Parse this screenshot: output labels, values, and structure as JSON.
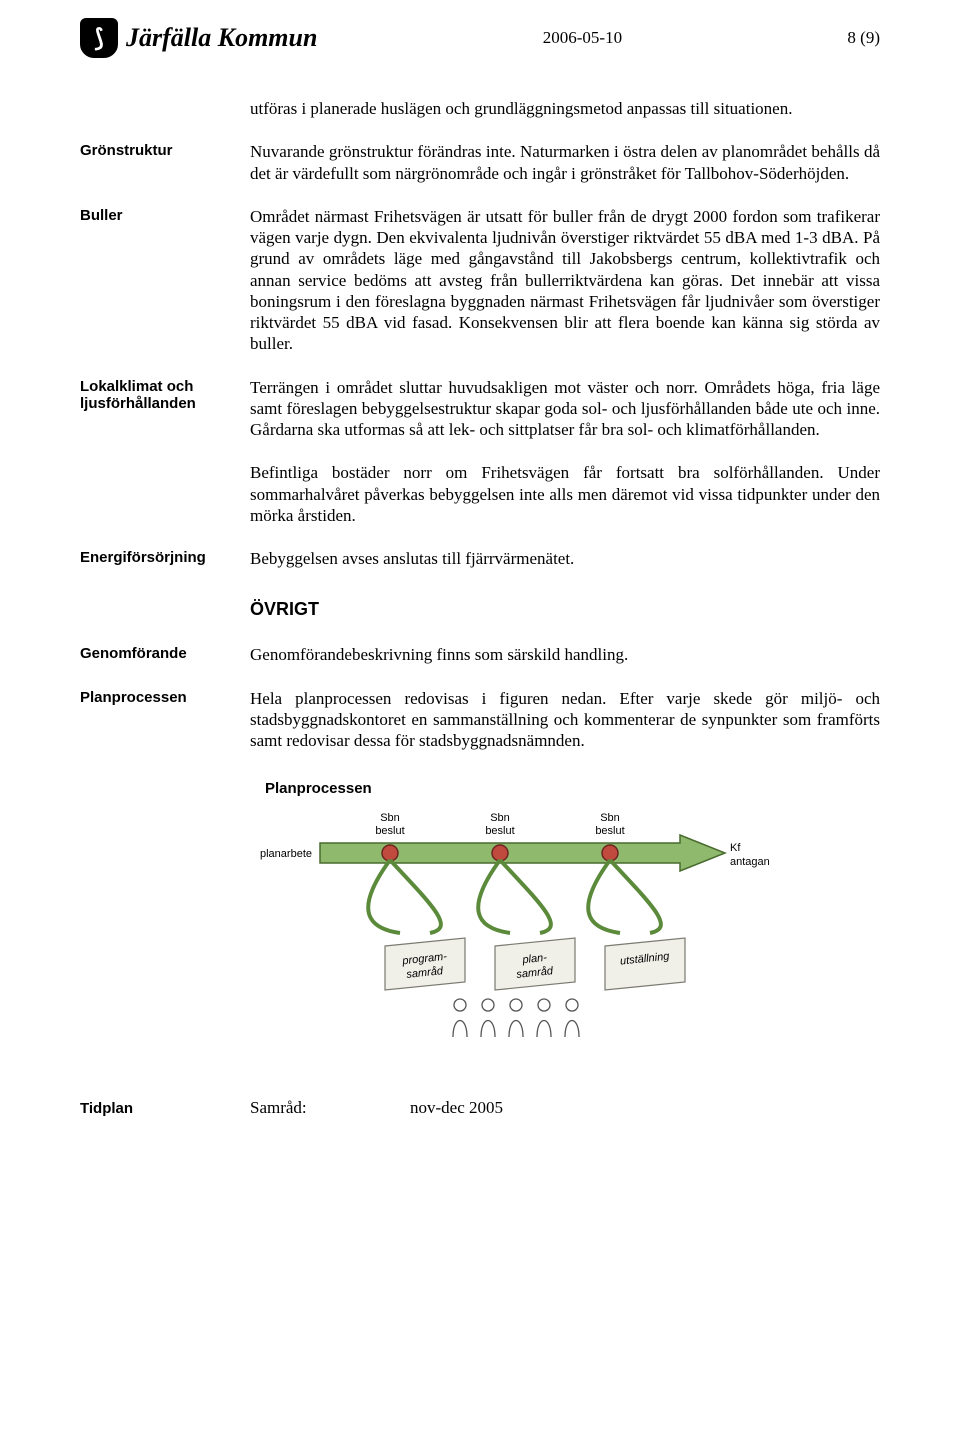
{
  "header": {
    "org_name": "Järfälla Kommun",
    "date": "2006-05-10",
    "page": "8 (9)"
  },
  "intro": "utföras i planerade huslägen och grundläggningsmetod anpassas till situationen.",
  "sections": [
    {
      "label": "Grönstruktur",
      "paras": [
        "Nuvarande grönstruktur förändras inte. Naturmarken i östra delen av planområdet behålls då det är värdefullt som närgrönområde och ingår i grönstråket för Tallbohov-Söderhöjden."
      ]
    },
    {
      "label": "Buller",
      "paras": [
        "Området närmast Frihetsvägen är utsatt för buller från de drygt 2000 fordon som trafikerar vägen varje dygn. Den ekvivalenta ljudnivån överstiger riktvärdet 55 dBA med 1-3 dBA. På grund av områdets läge med gångavstånd till Jakobsbergs centrum, kollektivtrafik och annan service bedöms att avsteg från bullerriktvärdena kan göras. Det innebär att vissa boningsrum i den föreslagna byggnaden närmast Frihetsvägen får ljudnivåer som överstiger riktvärdet 55 dBA vid fasad. Konsekvensen blir att flera boende kan känna sig störda av buller."
      ]
    },
    {
      "label": "Lokalklimat och ljusförhållanden",
      "paras": [
        "Terrängen i området sluttar huvudsakligen mot väster och norr. Områdets höga, fria läge samt föreslagen bebyggelsestruktur skapar goda sol- och ljusförhållanden både ute och inne. Gårdarna ska utformas så att lek- och sittplatser får bra sol- och klimatförhållanden.",
        "Befintliga bostäder norr om Frihetsvägen får fortsatt bra solförhållanden. Under sommarhalvåret påverkas bebyggelsen inte alls men däremot vid vissa tidpunkter under den mörka årstiden."
      ]
    },
    {
      "label": "Energiförsörjning",
      "paras": [
        "Bebyggelsen avses anslutas till fjärrvärmenätet."
      ]
    }
  ],
  "heading2": "ÖVRIGT",
  "sections2": [
    {
      "label": "Genomförande",
      "paras": [
        "Genomförandebeskrivning finns som särskild handling."
      ]
    },
    {
      "label": "Planprocessen",
      "paras": [
        "Hela planprocessen redovisas i figuren nedan. Efter varje skede gör miljö- och stadsbyggnadskontoret en sammanställning och kommenterar de synpunkter som framförts samt redovisar dessa för stadsbyggnadsnämnden."
      ]
    }
  ],
  "diagram": {
    "title": "Planprocessen",
    "left_label": "planarbete",
    "top_labels": [
      "Sbn\nbeslut",
      "Sbn\nbeslut",
      "Sbn\nbeslut"
    ],
    "right_label_top": "Kf",
    "right_label_bottom": "antagande",
    "cards": [
      "program-\nsamråd",
      "plan-\nsamråd",
      "utställning"
    ],
    "colors": {
      "arrow_fill": "#8fb96d",
      "arrow_stroke": "#486b2e",
      "node_fill": "#c14a3f",
      "node_stroke": "#6b251f",
      "loop_stroke": "#5a8a3a",
      "card_fill": "#f0efe8",
      "card_stroke": "#7a7a70",
      "person_stroke": "#555555",
      "title_color": "#000000",
      "label_color": "#000000",
      "label_fontsize": 11,
      "title_fontsize": 15
    }
  },
  "footer": {
    "label": "Tidplan",
    "key": "Samråd:",
    "value": "nov-dec 2005"
  }
}
